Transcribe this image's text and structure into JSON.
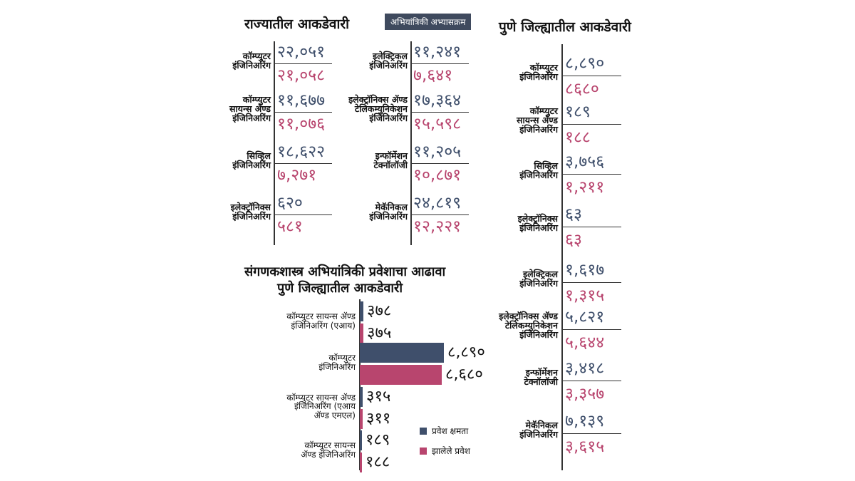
{
  "headings": {
    "state": "राज्यातील आकडेवारी",
    "badge": "अभियांत्रिकी अभ्यासक्रम",
    "pune": "पुणे जिल्ह्यातील आकडेवारी",
    "chart_line1": "संगणकशास्त्र अभियांत्रिकी प्रवेशाचा आढावा",
    "chart_line2": "पुणे जिल्ह्यातील आकडेवारी"
  },
  "state": {
    "left": [
      {
        "label": [
          "कॉम्प्युटर",
          "इंजिनिअरिंग"
        ],
        "capacity": "२२,०५१",
        "admitted": "२१,०५८"
      },
      {
        "label": [
          "कॉम्प्युटर",
          "सायन्स ॲण्ड",
          "इंजिनिअरिंग"
        ],
        "capacity": "११,६७७",
        "admitted": "११,०७६"
      },
      {
        "label": [
          "सिव्हिल",
          "इंजिनिअरिंग"
        ],
        "capacity": "१८,६२२",
        "admitted": "७,२७१"
      },
      {
        "label": [
          "इलेक्ट्रॉनिक्स",
          "इंजिनिअरिंग"
        ],
        "capacity": "६२०",
        "admitted": "५८१"
      }
    ],
    "middle": [
      {
        "label": [
          "इलेक्ट्रिकल",
          "इंजिनिअरिंग"
        ],
        "capacity": "११,२४१",
        "admitted": "७,६४१"
      },
      {
        "label": [
          "इलेक्ट्रॉनिक्स ॲण्ड",
          "टेलिकम्युनिकेशन",
          "इंजिनिअरिंग"
        ],
        "capacity": "१७,३६४",
        "admitted": "१५,५९८"
      },
      {
        "label": [
          "इन्फॉर्मेशन",
          "टेक्नॉलॉजी"
        ],
        "capacity": "११,२०५",
        "admitted": "१०,८७१"
      },
      {
        "label": [
          "मेकॅनिकल",
          "इंजिनिअरिंग"
        ],
        "capacity": "२४,८१९",
        "admitted": "१२,२२१"
      }
    ]
  },
  "pune": [
    {
      "label": [
        "कॉम्प्युटर",
        "इंजिनिअरिंग"
      ],
      "capacity": "८,८९०",
      "admitted": "८६८०"
    },
    {
      "label": [
        "कॉम्प्युटर",
        "सायन्स ॲण्ड",
        "इंजिनिअरिंग"
      ],
      "capacity": "१८९",
      "admitted": "१८८"
    },
    {
      "label": [
        "सिव्हिल",
        "इंजिनिअरिंग"
      ],
      "capacity": "३,७५६",
      "admitted": "१,२११"
    },
    {
      "label": [
        "इलेक्ट्रॉनिक्स",
        "इंजिनिअरिंग"
      ],
      "capacity": "६३",
      "admitted": "६३"
    },
    {
      "label": [
        "इलेक्ट्रिकल",
        "इंजिनिअरिंग"
      ],
      "capacity": "१,६१७",
      "admitted": "१,३१५"
    },
    {
      "label": [
        "इलेक्ट्रॉनिक्स ॲण्ड",
        "टेलिकम्युनिकेशन",
        "इंजिनिअरिंग"
      ],
      "capacity": "५,८२१",
      "admitted": "५,६४४"
    },
    {
      "label": [
        "इन्फॉर्मेशन",
        "टेक्नॉलॉजी"
      ],
      "capacity": "३,४१८",
      "admitted": "३,३५७"
    },
    {
      "label": [
        "मेकॅनिकल",
        "इंजिनिअरिंग"
      ],
      "capacity": "७,१३९",
      "admitted": "३,६१५"
    }
  ],
  "colors": {
    "capacity": "#3f4f6b",
    "admitted": "#b8456e"
  },
  "chart_data": {
    "type": "bar",
    "orientation": "horizontal",
    "title": "संगणकशास्त्र अभियांत्रिकी प्रवेशाचा आढावा",
    "subtitle": "पुणे जिल्ह्यातील आकडेवारी",
    "categories": [
      [
        "कॉम्प्युटर सायन्स ॲण्ड",
        "इंजिनिअरिंग (एआय)"
      ],
      [
        "कॉम्प्युटर",
        "इंजिनिअरिंग"
      ],
      [
        "कॉम्प्युटर सायन्स ॲण्ड",
        "इंजिनिअरिंग (एआय",
        "ॲण्ड एमएल)"
      ],
      [
        "कॉम्प्युटर सायन्स",
        "ॲण्ड इंजिनिअरिंग"
      ]
    ],
    "series": [
      {
        "name": "प्रवेश क्षमता",
        "color": "#3f4f6b",
        "values": [
          378,
          8890,
          315,
          189
        ],
        "labels": [
          "३७८",
          "८,८९०",
          "३१५",
          "१८९"
        ]
      },
      {
        "name": "झालेले प्रवेश",
        "color": "#b8456e",
        "values": [
          375,
          8680,
          311,
          188
        ],
        "labels": [
          "३७५",
          "८,६८०",
          "३११",
          "१८८"
        ]
      }
    ],
    "xlim": [
      0,
      8890
    ],
    "legend_position": "right"
  }
}
